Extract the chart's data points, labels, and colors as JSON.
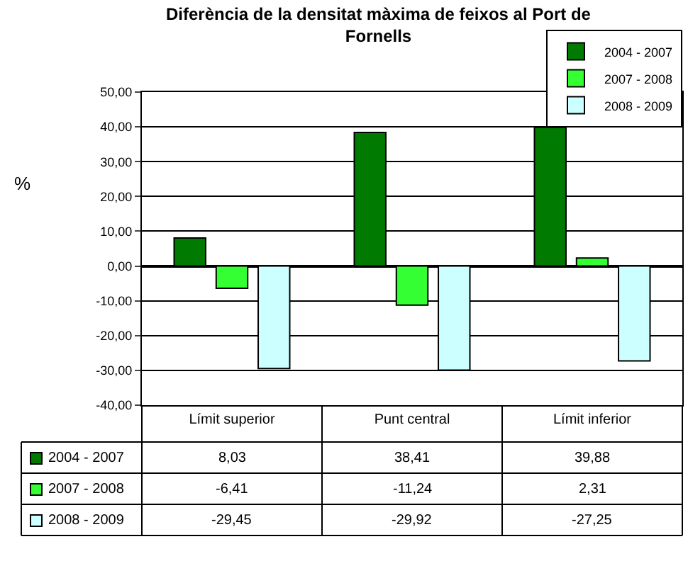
{
  "chart_data": {
    "type": "bar",
    "title": "Diferència de la densitat màxima de feixos al Port de Fornells",
    "ylabel": "%",
    "categories": [
      "Límit superior",
      "Punt central",
      "Límit inferior"
    ],
    "series": [
      {
        "name": "2004 - 2007",
        "color": "#007a00",
        "values": [
          8.03,
          38.41,
          39.88
        ],
        "value_labels": [
          "8,03",
          "38,41",
          "39,88"
        ]
      },
      {
        "name": "2007 - 2008",
        "color": "#33ff33",
        "values": [
          -6.41,
          -11.24,
          2.31
        ],
        "value_labels": [
          "-6,41",
          "-11,24",
          "2,31"
        ]
      },
      {
        "name": "2008 - 2009",
        "color": "#ccffff",
        "values": [
          -29.45,
          -29.92,
          -27.25
        ],
        "value_labels": [
          "-29,45",
          "-29,92",
          "-27,25"
        ]
      }
    ],
    "ylim": [
      -40,
      50
    ],
    "yticks": [
      {
        "value": -40,
        "label": "-40,00"
      },
      {
        "value": -30,
        "label": "-30,00"
      },
      {
        "value": -20,
        "label": "-20,00"
      },
      {
        "value": -10,
        "label": "-10,00"
      },
      {
        "value": 0,
        "label": "0,00"
      },
      {
        "value": 10,
        "label": "10,00"
      },
      {
        "value": 20,
        "label": "20,00"
      },
      {
        "value": 30,
        "label": "30,00"
      },
      {
        "value": 40,
        "label": "40,00"
      },
      {
        "value": 50,
        "label": "50,00"
      }
    ],
    "grid": "y",
    "legend": "top right"
  }
}
